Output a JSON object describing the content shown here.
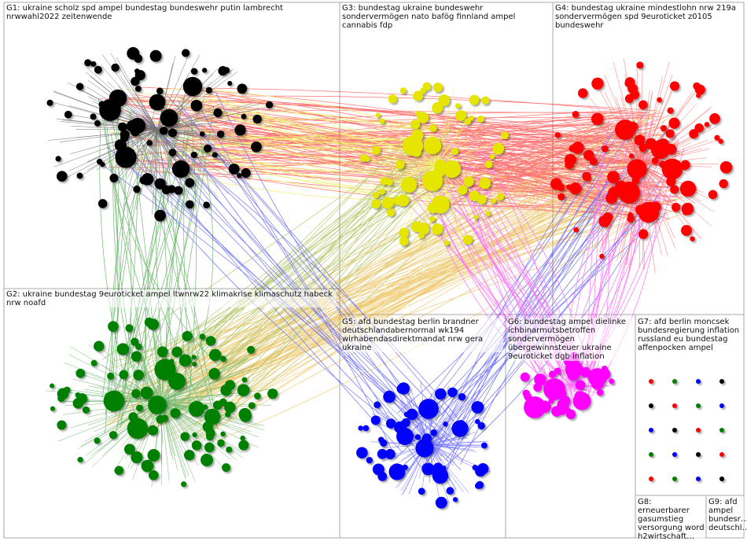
{
  "groups": [
    {
      "label": "G1: ukraine scholz spd ampel bundestag bundeswehr putin lambrecht nrwwahl2022 zeitenwende"
    },
    {
      "label": "G3: bundestag ukraine bundeswehr sondervermögen nato bafög finnland ampel cannabis fdp"
    },
    {
      "label": "G4: bundestag ukraine mindestlohn nrw 219a sondervermögen spd 9euroticket z0105 bundeswehr"
    },
    {
      "label": "G2: ukraine bundestag 9euroticket ampel ltwnrw22 klimakrise klimaschutz habeck nrw noafd"
    },
    {
      "label": "G5: afd bundestag berlin brandner deutschlandabernormal wk194 wirhabendasdirektmandat nrw gera ukraine"
    },
    {
      "label": "G6: bundestag ampel dielinke ichbinarmutsbetroffen sondervermögen übergewinnsteuer ukraine 9euroticket dgb inflation"
    },
    {
      "label": "G7: afd berlin moncsek bundesregierung inflation russland eu bundestag affenpocken ampel"
    },
    {
      "label": "G8: erneuerbarer gasumstieg versorgung word h2wirtschaft…"
    },
    {
      "label": "G9: afd ampel bundesr… deutschl…"
    }
  ]
}
